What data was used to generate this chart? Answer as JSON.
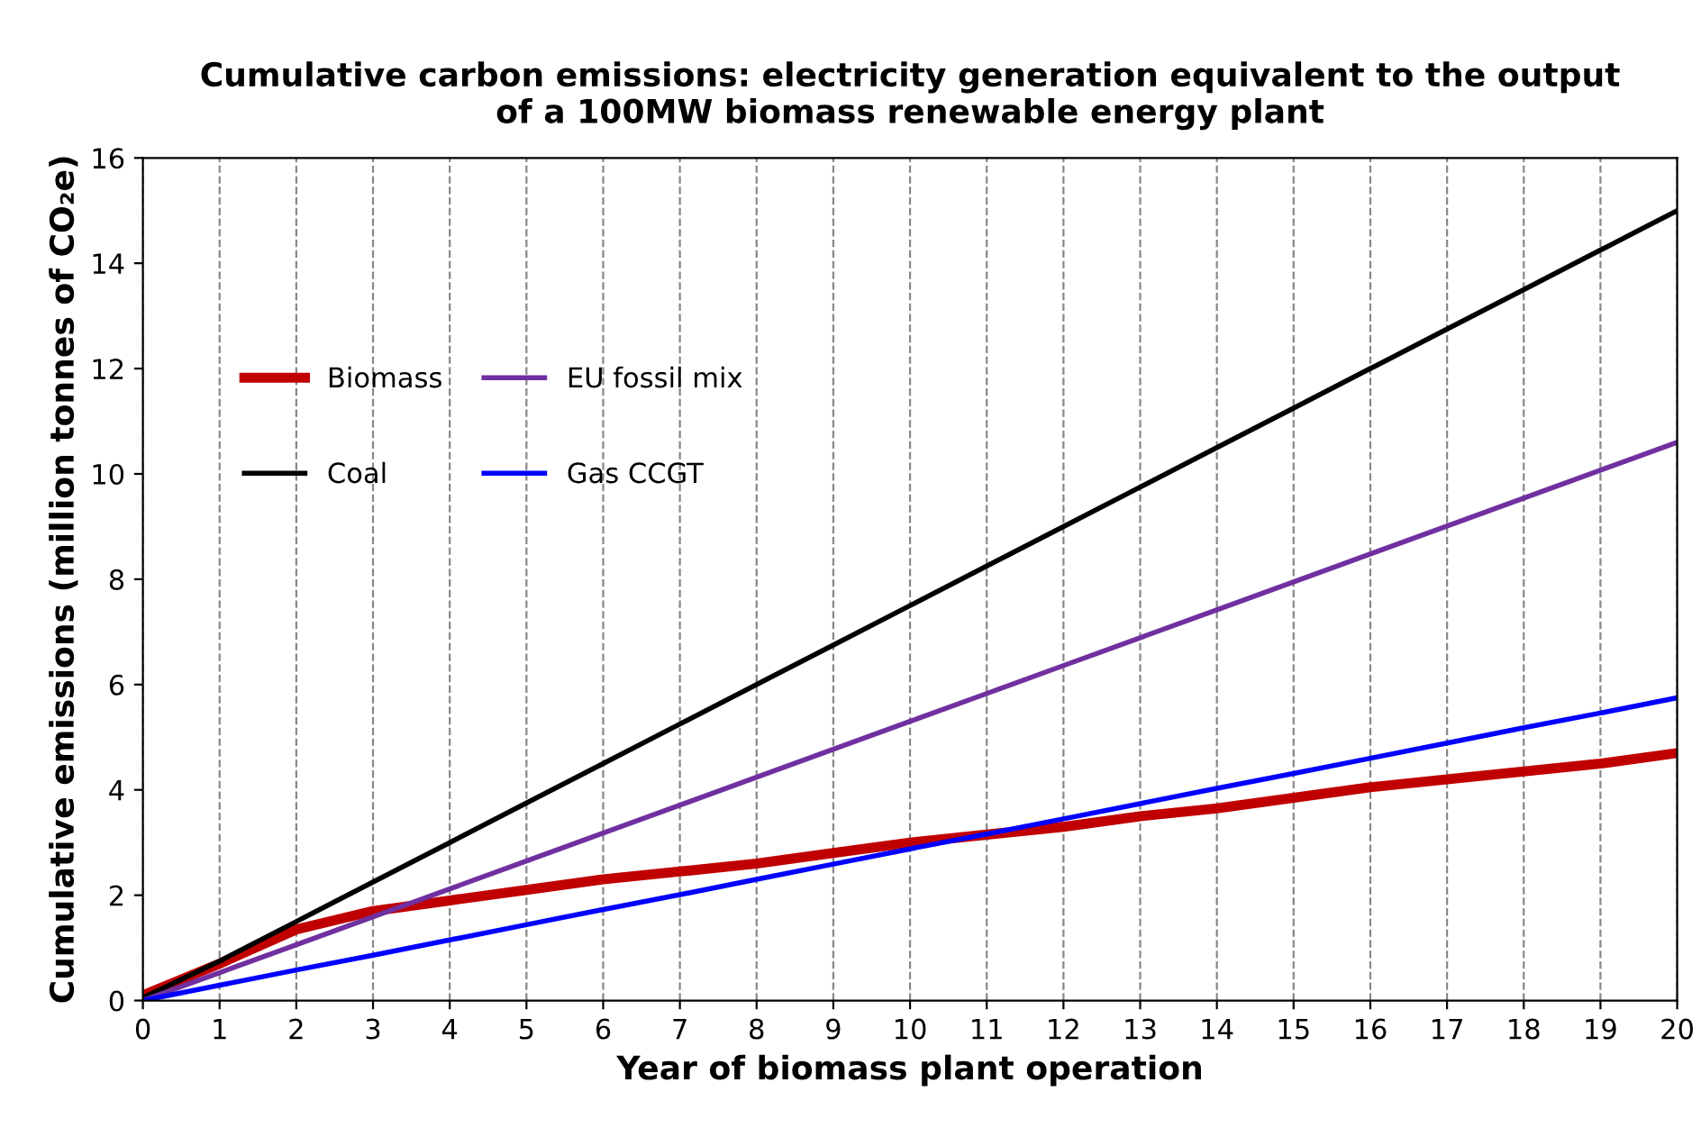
{
  "chart_data": {
    "type": "line",
    "title": "Cumulative carbon emissions: electricity generation equivalent to the output\nof a 100MW biomass renewable energy plant",
    "xlabel": "Year of biomass plant operation",
    "ylabel": "Cumulative emissions (million tonnes of CO₂e)",
    "x": [
      0,
      1,
      2,
      3,
      4,
      5,
      6,
      7,
      8,
      9,
      10,
      11,
      12,
      13,
      14,
      15,
      16,
      17,
      18,
      19,
      20
    ],
    "series": [
      {
        "name": "Biomass",
        "color": "#c00000",
        "values": [
          0.1,
          0.7,
          1.35,
          1.7,
          1.9,
          2.1,
          2.3,
          2.45,
          2.6,
          2.8,
          3.0,
          3.15,
          3.3,
          3.5,
          3.65,
          3.85,
          4.05,
          4.2,
          4.35,
          4.5,
          4.7
        ]
      },
      {
        "name": "Coal",
        "color": "#000000",
        "values": [
          0.05,
          0.75,
          1.5,
          2.25,
          3.0,
          3.75,
          4.5,
          5.25,
          6.0,
          6.75,
          7.5,
          8.25,
          9.0,
          9.75,
          10.5,
          11.25,
          12.0,
          12.75,
          13.5,
          14.25,
          15.0
        ]
      },
      {
        "name": "EU fossil mix",
        "color": "#7030a0",
        "values": [
          0.0,
          0.53,
          1.06,
          1.59,
          2.12,
          2.65,
          3.18,
          3.71,
          4.24,
          4.77,
          5.3,
          5.83,
          6.36,
          6.89,
          7.42,
          7.95,
          8.48,
          9.01,
          9.54,
          10.07,
          10.6
        ]
      },
      {
        "name": "Gas CCGT",
        "color": "#0000ff",
        "values": [
          0.0,
          0.29,
          0.58,
          0.86,
          1.15,
          1.44,
          1.73,
          2.01,
          2.3,
          2.59,
          2.88,
          3.16,
          3.45,
          3.74,
          4.03,
          4.31,
          4.6,
          4.89,
          5.18,
          5.46,
          5.75
        ]
      }
    ],
    "xlim": [
      0,
      20
    ],
    "xticks": [
      0,
      1,
      2,
      3,
      4,
      5,
      6,
      7,
      8,
      9,
      10,
      11,
      12,
      13,
      14,
      15,
      16,
      17,
      18,
      19,
      20
    ],
    "ylim": [
      0,
      16
    ],
    "yticks": [
      0,
      2,
      4,
      6,
      8,
      10,
      12,
      14,
      16
    ],
    "grid": "x",
    "legend": "left",
    "marker": "none",
    "line_style": "solid"
  }
}
